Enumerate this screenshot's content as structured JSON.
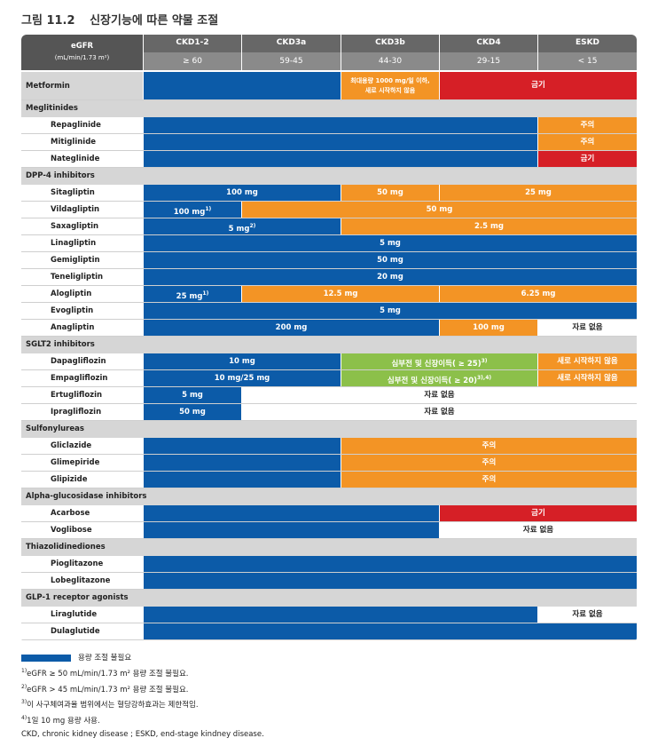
{
  "title": {
    "num": "그림 11.2",
    "text": "신장기능에 따른 약물 조절"
  },
  "header": {
    "egfr_label": "eGFR",
    "egfr_unit": "(mL/min/1.73 m²)",
    "stages": [
      "CKD1-2",
      "CKD3a",
      "CKD3b",
      "CKD4",
      "ESKD"
    ],
    "ranges": [
      "≥ 60",
      "59-45",
      "44-30",
      "29-15",
      "< 15"
    ]
  },
  "colors": {
    "blue": "#0c5ba8",
    "orange": "#f39425",
    "red": "#d61f26",
    "green": "#8cc04a",
    "header": "#676767",
    "section": "#d6d6d6"
  },
  "rows": [
    {
      "type": "drug-top",
      "name": "Metformin",
      "cells": [
        {
          "c": "blue",
          "from": 0,
          "to": 2,
          "t": ""
        },
        {
          "c": "orange",
          "from": 2,
          "to": 3,
          "t": "최대용량 1000 mg/일 이하,",
          "t2": "새로 시작하지 않음"
        },
        {
          "c": "red",
          "from": 3,
          "to": 5,
          "t": "금기"
        }
      ]
    },
    {
      "type": "section",
      "name": "Meglitinides"
    },
    {
      "type": "drug",
      "name": "Repaglinide",
      "cells": [
        {
          "c": "blue",
          "from": 0,
          "to": 4,
          "t": ""
        },
        {
          "c": "orange",
          "from": 4,
          "to": 5,
          "t": "주의"
        }
      ]
    },
    {
      "type": "drug",
      "name": "Mitiglinide",
      "cells": [
        {
          "c": "blue",
          "from": 0,
          "to": 4,
          "t": ""
        },
        {
          "c": "orange",
          "from": 4,
          "to": 5,
          "t": "주의"
        }
      ]
    },
    {
      "type": "drug",
      "name": "Nateglinide",
      "cells": [
        {
          "c": "blue",
          "from": 0,
          "to": 4,
          "t": ""
        },
        {
          "c": "red",
          "from": 4,
          "to": 5,
          "t": "금기"
        }
      ]
    },
    {
      "type": "section",
      "name": "DPP-4 inhibitors"
    },
    {
      "type": "drug",
      "name": "Sitagliptin",
      "cells": [
        {
          "c": "blue",
          "from": 0,
          "to": 2,
          "t": "100 mg"
        },
        {
          "c": "orange",
          "from": 2,
          "to": 3,
          "t": "50 mg"
        },
        {
          "c": "orange",
          "from": 3,
          "to": 5,
          "t": "25 mg"
        }
      ]
    },
    {
      "type": "drug",
      "name": "Vildagliptin",
      "cells": [
        {
          "c": "blue",
          "from": 0,
          "to": 1,
          "t": "100 mg",
          "sup": "1)"
        },
        {
          "c": "orange",
          "from": 1,
          "to": 5,
          "t": "50 mg"
        }
      ]
    },
    {
      "type": "drug",
      "name": "Saxagliptin",
      "cells": [
        {
          "c": "blue",
          "from": 0,
          "to": 2,
          "t": "5 mg",
          "sup": "2)"
        },
        {
          "c": "orange",
          "from": 2,
          "to": 5,
          "t": "2.5 mg"
        }
      ]
    },
    {
      "type": "drug",
      "name": "Linagliptin",
      "cells": [
        {
          "c": "blue",
          "from": 0,
          "to": 5,
          "t": "5 mg"
        }
      ]
    },
    {
      "type": "drug",
      "name": "Gemigliptin",
      "cells": [
        {
          "c": "blue",
          "from": 0,
          "to": 5,
          "t": "50 mg"
        }
      ]
    },
    {
      "type": "drug",
      "name": "Teneligliptin",
      "cells": [
        {
          "c": "blue",
          "from": 0,
          "to": 5,
          "t": "20 mg"
        }
      ]
    },
    {
      "type": "drug",
      "name": "Alogliptin",
      "cells": [
        {
          "c": "blue",
          "from": 0,
          "to": 1,
          "t": "25 mg",
          "sup": "1)"
        },
        {
          "c": "orange",
          "from": 1,
          "to": 3,
          "t": "12.5 mg"
        },
        {
          "c": "orange",
          "from": 3,
          "to": 5,
          "t": "6.25 mg"
        }
      ]
    },
    {
      "type": "drug",
      "name": "Evogliptin",
      "cells": [
        {
          "c": "blue",
          "from": 0,
          "to": 5,
          "t": "5 mg"
        }
      ]
    },
    {
      "type": "drug",
      "name": "Anagliptin",
      "cells": [
        {
          "c": "blue",
          "from": 0,
          "to": 3,
          "t": "200 mg"
        },
        {
          "c": "orange",
          "from": 3,
          "to": 4,
          "t": "100 mg"
        },
        {
          "c": "none",
          "from": 4,
          "to": 5,
          "t": "자료 없음"
        }
      ]
    },
    {
      "type": "section",
      "name": "SGLT2 inhibitors"
    },
    {
      "type": "drug",
      "name": "Dapagliflozin",
      "cells": [
        {
          "c": "blue",
          "from": 0,
          "to": 2,
          "t": "10 mg"
        },
        {
          "c": "green",
          "from": 2,
          "to": 4,
          "t": "심부전 및 신장이득( ≥ 25)",
          "sup": "3)"
        },
        {
          "c": "orange",
          "from": 4,
          "to": 5,
          "t": "새로 시작하지 않음"
        }
      ]
    },
    {
      "type": "drug",
      "name": "Empagliflozin",
      "cells": [
        {
          "c": "blue",
          "from": 0,
          "to": 2,
          "t": "10 mg/25 mg"
        },
        {
          "c": "green",
          "from": 2,
          "to": 4,
          "t": "심부전 및 신장이득( ≥ 20)",
          "sup": "3),4)"
        },
        {
          "c": "orange",
          "from": 4,
          "to": 5,
          "t": "새로 시작하지 않음"
        }
      ]
    },
    {
      "type": "drug",
      "name": "Ertugliflozin",
      "cells": [
        {
          "c": "blue",
          "from": 0,
          "to": 1,
          "t": "5 mg"
        },
        {
          "c": "none",
          "from": 1,
          "to": 5,
          "t": "자료 없음"
        }
      ]
    },
    {
      "type": "drug",
      "name": "Ipragliflozin",
      "cells": [
        {
          "c": "blue",
          "from": 0,
          "to": 1,
          "t": "50 mg"
        },
        {
          "c": "none",
          "from": 1,
          "to": 5,
          "t": "자료 없음"
        }
      ]
    },
    {
      "type": "section",
      "name": "Sulfonylureas"
    },
    {
      "type": "drug",
      "name": "Gliclazide",
      "cells": [
        {
          "c": "blue",
          "from": 0,
          "to": 2,
          "t": ""
        },
        {
          "c": "orange",
          "from": 2,
          "to": 5,
          "t": "주의"
        }
      ]
    },
    {
      "type": "drug",
      "name": "Glimepiride",
      "cells": [
        {
          "c": "blue",
          "from": 0,
          "to": 2,
          "t": ""
        },
        {
          "c": "orange",
          "from": 2,
          "to": 5,
          "t": "주의"
        }
      ]
    },
    {
      "type": "drug",
      "name": "Glipizide",
      "cells": [
        {
          "c": "blue",
          "from": 0,
          "to": 2,
          "t": ""
        },
        {
          "c": "orange",
          "from": 2,
          "to": 5,
          "t": "주의"
        }
      ]
    },
    {
      "type": "section",
      "name": "Alpha-glucosidase inhibitors"
    },
    {
      "type": "drug",
      "name": "Acarbose",
      "cells": [
        {
          "c": "blue",
          "from": 0,
          "to": 3,
          "t": ""
        },
        {
          "c": "red",
          "from": 3,
          "to": 5,
          "t": "금기"
        }
      ]
    },
    {
      "type": "drug",
      "name": "Voglibose",
      "cells": [
        {
          "c": "blue",
          "from": 0,
          "to": 3,
          "t": ""
        },
        {
          "c": "none",
          "from": 3,
          "to": 5,
          "t": "자료 없음"
        }
      ]
    },
    {
      "type": "section",
      "name": "Thiazolidinediones"
    },
    {
      "type": "drug",
      "name": "Pioglitazone",
      "cells": [
        {
          "c": "blue",
          "from": 0,
          "to": 5,
          "t": ""
        }
      ]
    },
    {
      "type": "drug",
      "name": "Lobeglitazone",
      "cells": [
        {
          "c": "blue",
          "from": 0,
          "to": 5,
          "t": ""
        }
      ]
    },
    {
      "type": "section",
      "name": "GLP-1 receptor agonists"
    },
    {
      "type": "drug",
      "name": "Liraglutide",
      "cells": [
        {
          "c": "blue",
          "from": 0,
          "to": 4,
          "t": ""
        },
        {
          "c": "none",
          "from": 4,
          "to": 5,
          "t": "자료 없음"
        }
      ]
    },
    {
      "type": "drug",
      "name": "Dulaglutide",
      "cells": [
        {
          "c": "blue",
          "from": 0,
          "to": 5,
          "t": ""
        }
      ]
    }
  ],
  "footnotes": {
    "legend": "용량 조절 불필요",
    "n1_sup": "1)",
    "n1": "eGFR ≥ 50 mL/min/1.73 m² 용량 조절 불필요.",
    "n2_sup": "2)",
    "n2": "eGFR > 45 mL/min/1.73 m² 용량 조절 불필요.",
    "n3_sup": "3)",
    "n3": "이 사구체여과율 범위에서는 혈당강하효과는 제한적임.",
    "n4_sup": "4)",
    "n4": "1일 10 mg 용량 사용.",
    "abbr": "CKD, chronic kidney disease ; ESKD, end-stage kindney disease."
  }
}
